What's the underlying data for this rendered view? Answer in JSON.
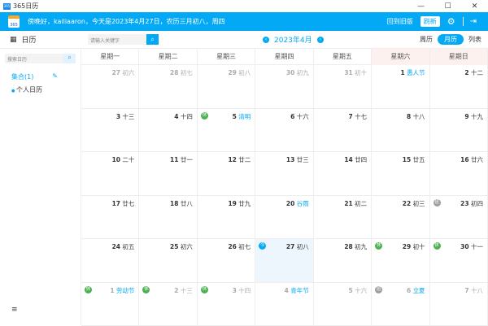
{
  "window": {
    "title": "365日历",
    "minimize": "—",
    "maximize": "☐",
    "close": "✕"
  },
  "banner": {
    "logo": "365",
    "greeting": "傍晚好，kailiaaron，今天是2023年4月27日，农历三月初八，周四",
    "old_version": "回到旧版",
    "refresh": "刷新",
    "settings_icon": "⚙",
    "logout_icon": "⇥"
  },
  "toolbar": {
    "calendar_label": "日历",
    "search_placeholder": "请输入关键字",
    "search_icon": "⌕",
    "month_label": "2023年4月",
    "prev": "‹",
    "next": "›",
    "views": [
      "周历",
      "月历",
      "列表"
    ],
    "active_view": "月历"
  },
  "sidebar": {
    "search_placeholder": "搜索日历",
    "collection": "集合(1)",
    "edit_icon": "✎",
    "calendars": [
      "个人日历"
    ],
    "menu_icon": "≡"
  },
  "colors": {
    "accent": "#03a9f4",
    "holiday": "#4caf50",
    "workday": "#9e9e9e"
  },
  "weekdays": [
    "星期一",
    "星期二",
    "星期三",
    "星期四",
    "星期五",
    "星期六",
    "星期日"
  ],
  "cells": [
    {
      "d": "27",
      "l": "初六",
      "o": 1
    },
    {
      "d": "28",
      "l": "初七",
      "o": 1
    },
    {
      "d": "29",
      "l": "初八",
      "o": 1
    },
    {
      "d": "30",
      "l": "初九",
      "o": 1
    },
    {
      "d": "31",
      "l": "初十",
      "o": 1
    },
    {
      "d": "1",
      "l": "愚人节",
      "f": 1
    },
    {
      "d": "2",
      "l": "十二"
    },
    {
      "d": "3",
      "l": "十三"
    },
    {
      "d": "4",
      "l": "十四"
    },
    {
      "d": "5",
      "l": "清明",
      "f": 1,
      "b": "休"
    },
    {
      "d": "6",
      "l": "十六"
    },
    {
      "d": "7",
      "l": "十七"
    },
    {
      "d": "8",
      "l": "十八"
    },
    {
      "d": "9",
      "l": "十九"
    },
    {
      "d": "10",
      "l": "二十"
    },
    {
      "d": "11",
      "l": "廿一"
    },
    {
      "d": "12",
      "l": "廿二"
    },
    {
      "d": "13",
      "l": "廿三"
    },
    {
      "d": "14",
      "l": "廿四"
    },
    {
      "d": "15",
      "l": "廿五"
    },
    {
      "d": "16",
      "l": "廿六"
    },
    {
      "d": "17",
      "l": "廿七"
    },
    {
      "d": "18",
      "l": "廿八"
    },
    {
      "d": "19",
      "l": "廿九"
    },
    {
      "d": "20",
      "l": "谷雨",
      "f": 1
    },
    {
      "d": "21",
      "l": "初二"
    },
    {
      "d": "22",
      "l": "初三"
    },
    {
      "d": "23",
      "l": "初四",
      "b": "班"
    },
    {
      "d": "24",
      "l": "初五"
    },
    {
      "d": "25",
      "l": "初六"
    },
    {
      "d": "26",
      "l": "初七"
    },
    {
      "d": "27",
      "l": "初八",
      "t": 1,
      "b": "今"
    },
    {
      "d": "28",
      "l": "初九"
    },
    {
      "d": "29",
      "l": "初十",
      "b": "休"
    },
    {
      "d": "30",
      "l": "十一",
      "b": "休"
    },
    {
      "d": "1",
      "l": "劳动节",
      "f": 1,
      "o": 1,
      "b": "休"
    },
    {
      "d": "2",
      "l": "十三",
      "o": 1,
      "b": "休"
    },
    {
      "d": "3",
      "l": "十四",
      "o": 1,
      "b": "休"
    },
    {
      "d": "4",
      "l": "青年节",
      "f": 1,
      "o": 1
    },
    {
      "d": "5",
      "l": "十六",
      "o": 1
    },
    {
      "d": "6",
      "l": "立夏",
      "f": 1,
      "o": 1,
      "b": "班"
    },
    {
      "d": "7",
      "l": "十八",
      "o": 1
    }
  ]
}
